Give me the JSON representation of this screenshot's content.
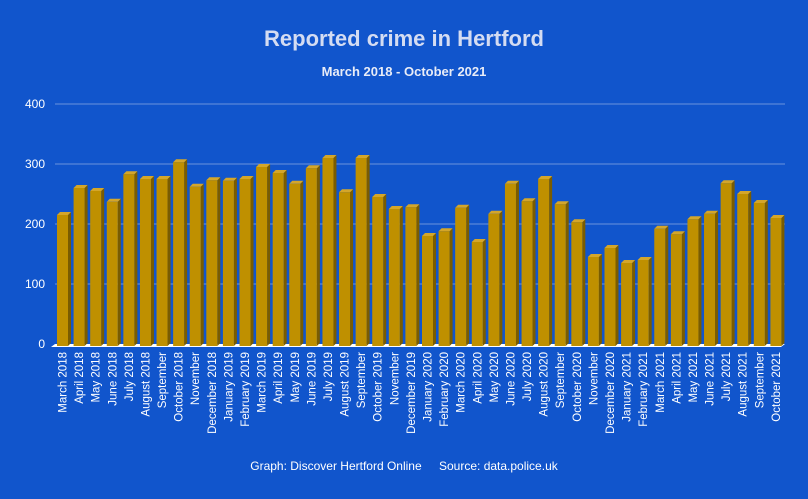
{
  "chart_data": {
    "type": "bar",
    "title": "Reported crime in Hertford",
    "subtitle": "March 2018 - October 2021",
    "xlabel": "",
    "ylabel": "",
    "ylim": [
      0,
      400
    ],
    "yticks": [
      0,
      100,
      200,
      300,
      400
    ],
    "grid": true,
    "legend": "none",
    "bar_color": "#bf9000",
    "categories": [
      "March 2018",
      "April 2018",
      "May 2018",
      "June 2018",
      "July 2018",
      "August 2018",
      "September",
      "October 2018",
      "November",
      "December 2018",
      "January 2019",
      "February 2019",
      "March 2019",
      "April 2019",
      "May 2019",
      "June 2019",
      "July 2019",
      "August 2019",
      "September",
      "October 2019",
      "November",
      "December 2019",
      "January 2020",
      "February 2020",
      "March 2020",
      "April 2020",
      "May 2020",
      "June 2020",
      "July 2020",
      "August 2020",
      "September",
      "October 2020",
      "November",
      "December 2020",
      "January 2021",
      "February 2021",
      "March 2021",
      "April 2021",
      "May 2021",
      "June 2021",
      "July 2021",
      "August 2021",
      "September",
      "October 2021"
    ],
    "values": [
      215,
      260,
      255,
      237,
      283,
      275,
      275,
      303,
      262,
      273,
      272,
      275,
      295,
      285,
      267,
      293,
      310,
      253,
      310,
      245,
      225,
      228,
      180,
      188,
      227,
      170,
      217,
      267,
      238,
      275,
      233,
      203,
      145,
      160,
      135,
      140,
      192,
      183,
      208,
      217,
      268,
      250,
      235,
      210
    ]
  },
  "footer": {
    "graph_credit": "Graph: Discover Hertford Online",
    "source": "Source: data.police.uk"
  }
}
